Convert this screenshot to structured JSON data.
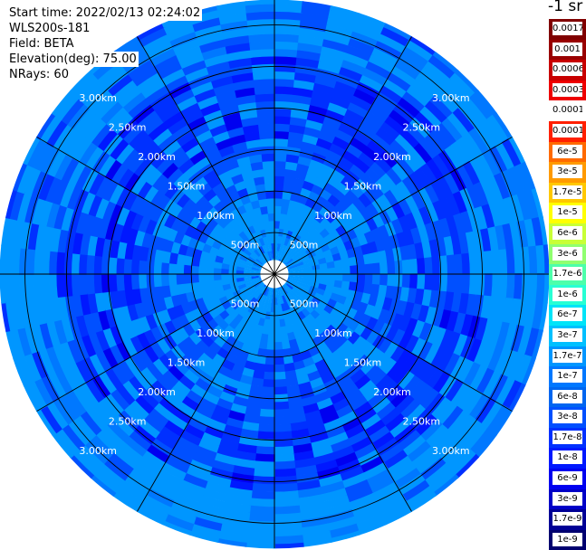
{
  "info": {
    "start_time": "Start time: 2022/02/13 02:24:02",
    "instrument": "WLS200s-181",
    "field": "Field: BETA",
    "elevation": "Elevation(deg): 75.00",
    "nrays": "NRays: 60"
  },
  "colorbar": {
    "title": "-1 sr",
    "labels": [
      "0.0017",
      "0.001",
      "0.0006",
      "0.0003",
      "0.00017",
      "0.0001",
      "6e-5",
      "3e-5",
      "1.7e-5",
      "1e-5",
      "6e-6",
      "3e-6",
      "1.7e-6",
      "1e-6",
      "6e-7",
      "3e-7",
      "1.7e-7",
      "1e-7",
      "6e-8",
      "3e-8",
      "1.7e-8",
      "1e-8",
      "6e-9",
      "3e-9",
      "1.7e-9",
      "1e-9"
    ],
    "colors": [
      "#800000",
      "#990000",
      "#c80000",
      "#ee0000",
      "#ffffff",
      "#ff2000",
      "#ff6a00",
      "#ff9a00",
      "#ffc800",
      "#ffff00",
      "#c8ff36",
      "#90ff70",
      "#4cffaa",
      "#28ffd4",
      "#00e4f8",
      "#00c0ff",
      "#0096ff",
      "#0078ff",
      "#0066f0",
      "#0050ff",
      "#0030ff",
      "#0018ff",
      "#0000f0",
      "#0000c8",
      "#000096",
      "#000070"
    ]
  },
  "chart_data": {
    "type": "heatmap",
    "projection": "polar (PPI scan)",
    "field": "BETA",
    "unit": "-1 sr",
    "elevation_deg": 75.0,
    "n_rays": 60,
    "max_range_km": 3.3,
    "range_ring_labels": [
      "500m",
      "1.00km",
      "1.50km",
      "2.00km",
      "2.50km",
      "3.00km"
    ],
    "range_rings_km": [
      0.5,
      1.0,
      1.5,
      2.0,
      2.5,
      3.0
    ],
    "radial_lines_deg": [
      0,
      30,
      60,
      90,
      120,
      150,
      180,
      210,
      240,
      270,
      300,
      330
    ],
    "label_azimuths_deg": [
      45,
      135,
      225,
      315
    ],
    "value_bands": [
      {
        "range_km": [
          0.1,
          0.9
        ],
        "dominant_value": "1.7e-8 to 3e-8"
      },
      {
        "range_km": [
          0.9,
          1.6
        ],
        "dominant_value": "1e-8 to 1.7e-8"
      },
      {
        "range_km": [
          1.6,
          2.6
        ],
        "dominant_value": "6e-9 to 1.7e-8"
      },
      {
        "range_km": [
          2.6,
          3.3
        ],
        "dominant_value": "1e-8 to 3e-8"
      }
    ]
  }
}
